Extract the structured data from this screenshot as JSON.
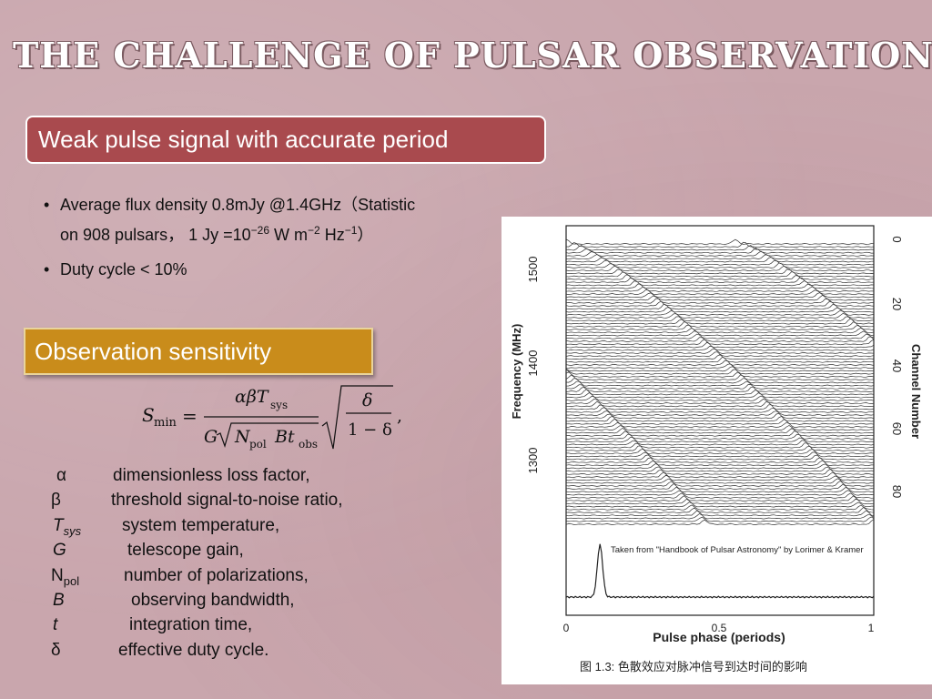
{
  "slide": {
    "title": "THE CHALLENGE OF PULSAR OBSERVATION",
    "weak_box": "Weak pulse signal with accurate period",
    "bullets": [
      {
        "line1": "Average flux density 0.8mJy @1.4GHz（Statistic",
        "line2_a": "on 908 pulsars， 1 Jy =10",
        "line2_sup1": "−26",
        "line2_b": " W m",
        "line2_sup2": "−2",
        "line2_c": " Hz",
        "line2_sup3": "−1",
        "line2_d": "）"
      },
      {
        "line1": "Duty cycle < 10%"
      }
    ],
    "sensitivity_box": "Observation sensitivity",
    "formula": {
      "lhs": "S",
      "lhs_sub": "min",
      "eq": "=",
      "num_alpha_beta": "αβT",
      "num_sub": "sys",
      "den_G": "G",
      "den_N": "N",
      "den_N_sub": "pol",
      "den_Bt": "Bt",
      "den_t_sub": "obs",
      "frac2_num": "δ",
      "frac2_den": "1 − δ",
      "comma": ","
    },
    "parameters": [
      {
        "symbol": "α",
        "sub": "",
        "desc": "dimensionless loss factor,"
      },
      {
        "symbol": "β",
        "sub": "",
        "desc": "threshold signal-to-noise ratio,"
      },
      {
        "symbol": "T",
        "sub": "sys",
        "desc": "system temperature,"
      },
      {
        "symbol": "G",
        "sub": "",
        "desc": "telescope gain,"
      },
      {
        "symbol": "N",
        "sub": "pol",
        "desc": "number of polarizations,"
      },
      {
        "symbol": "B",
        "sub": "",
        "desc": "observing bandwidth,"
      },
      {
        "symbol": "t",
        "sub": "",
        "desc": "integration time,"
      },
      {
        "symbol": "δ",
        "sub": "",
        "desc": "effective duty cycle."
      }
    ]
  },
  "figure": {
    "ylabel_left": "Frequency (MHz)",
    "ylabel_right": "Channel Number",
    "xlabel": "Pulse phase (periods)",
    "caption": "图 1.3:  色散效应对脉冲信号到达时间的影响",
    "credit": "Taken from \"Handbook of Pulsar Astronomy\" by Lorimer & Kramer",
    "freq_ticks": [
      "1500",
      "1400",
      "1300"
    ],
    "channel_ticks": [
      "0",
      "20",
      "40",
      "60",
      "80"
    ],
    "phase_ticks": [
      "0",
      "0.5",
      "1"
    ]
  },
  "chart_data": {
    "type": "line",
    "title": "",
    "xlabel": "Pulse phase (periods)",
    "ylabel": "Frequency (MHz)",
    "y2label": "Channel Number",
    "xlim": [
      0,
      1
    ],
    "ylim_frequency": [
      1240,
      1520
    ],
    "ylim_channel": [
      0,
      96
    ],
    "x_ticks": [
      0,
      0.5,
      1
    ],
    "y_ticks": [
      1500,
      1400,
      1300
    ],
    "y2_ticks": [
      0,
      20,
      40,
      60,
      80
    ],
    "n_channels": 96,
    "pulse_arrival_phase_top_channel": 0.0,
    "pulse_arrival_phase_bottom_channel": 1.0,
    "summed_profile_peak_phase": 0.11,
    "grid": false,
    "legend": "none"
  }
}
